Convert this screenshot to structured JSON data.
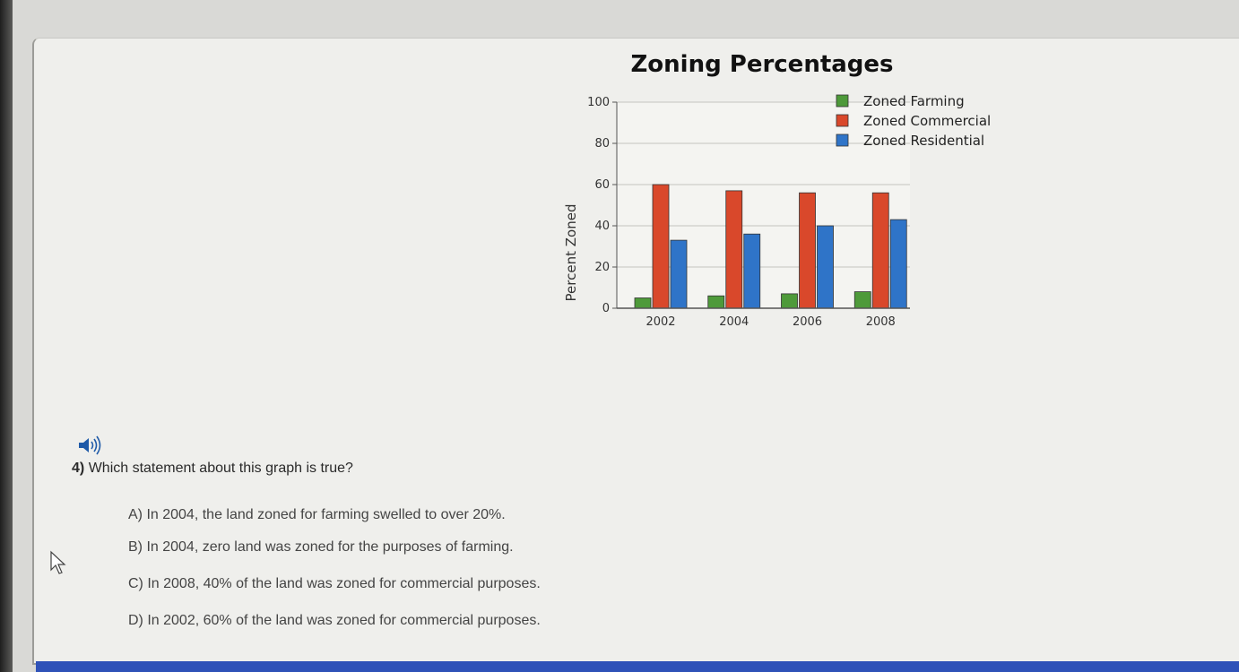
{
  "question": {
    "number": "4)",
    "text": "Which statement about this graph is true?",
    "options": [
      "A) In 2004, the land zoned for farming swelled to over 20%.",
      "B) In 2004, zero land was zoned for the purposes of farming.",
      "C) In 2008, 40% of the land was zoned for commercial purposes.",
      "D) In 2002, 60% of the land was zoned for commercial purposes."
    ]
  },
  "icons": {
    "audio": "speaker-icon",
    "pointer": "mouse-cursor-icon"
  },
  "colors": {
    "farming": "#4e9a3a",
    "commercial": "#d9482b",
    "residential": "#2f74c8",
    "taskbar": "#2f52b8"
  },
  "chart_data": {
    "type": "bar",
    "title": "Zoning Percentages",
    "ylabel": "Percent Zoned",
    "xlabel": "",
    "categories": [
      "2002",
      "2004",
      "2006",
      "2008"
    ],
    "series": [
      {
        "name": "Zoned Farming",
        "values": [
          5,
          6,
          7,
          8
        ]
      },
      {
        "name": "Zoned Commercial",
        "values": [
          60,
          57,
          56,
          56
        ]
      },
      {
        "name": "Zoned Residential",
        "values": [
          33,
          36,
          40,
          43
        ]
      }
    ],
    "ylim": [
      0,
      100
    ],
    "yticks": [
      0,
      20,
      40,
      60,
      80,
      100
    ],
    "grid": true,
    "legend": "top-right"
  }
}
